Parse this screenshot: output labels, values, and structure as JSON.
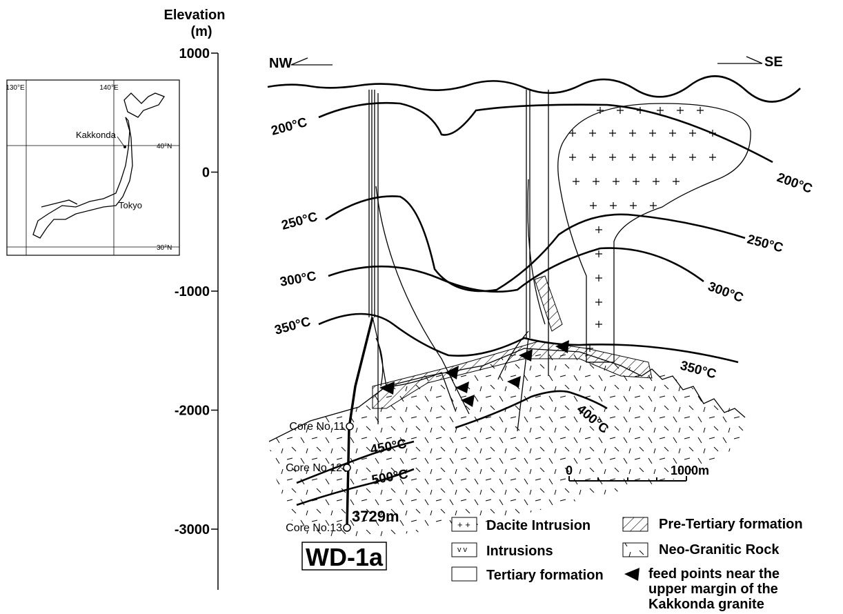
{
  "axis": {
    "title": [
      "Elevation",
      "(m)"
    ],
    "ticks": [
      1000,
      0,
      -1000,
      -2000,
      -3000
    ]
  },
  "directions": {
    "left": "NW",
    "right": "SE"
  },
  "isotherm_labels": {
    "left": [
      "200°C",
      "250°C",
      "300°C",
      "350°C"
    ],
    "right": [
      "200°C",
      "250°C",
      "300°C",
      "350°C"
    ],
    "deep": [
      "400°C",
      "450°C",
      "500°C"
    ]
  },
  "well": {
    "name": "WD-1a",
    "depth": "3729m",
    "cores": [
      "Core No.11",
      "Core No.12",
      "Core No.13"
    ]
  },
  "map": {
    "longitudes": [
      "130°E",
      "140°E"
    ],
    "latitudes": [
      "40°N",
      "30°N"
    ],
    "places": [
      "Kakkonda",
      "Tokyo"
    ]
  },
  "scale": {
    "start": "0",
    "end": "1000m"
  },
  "legend": [
    "Dacite Intrusion",
    "Pre-Tertiary formation",
    "Intrusions",
    "Neo-Granitic Rock",
    "Tertiary formation",
    "feed points near the",
    "upper margin of the",
    "Kakkonda granite"
  ]
}
